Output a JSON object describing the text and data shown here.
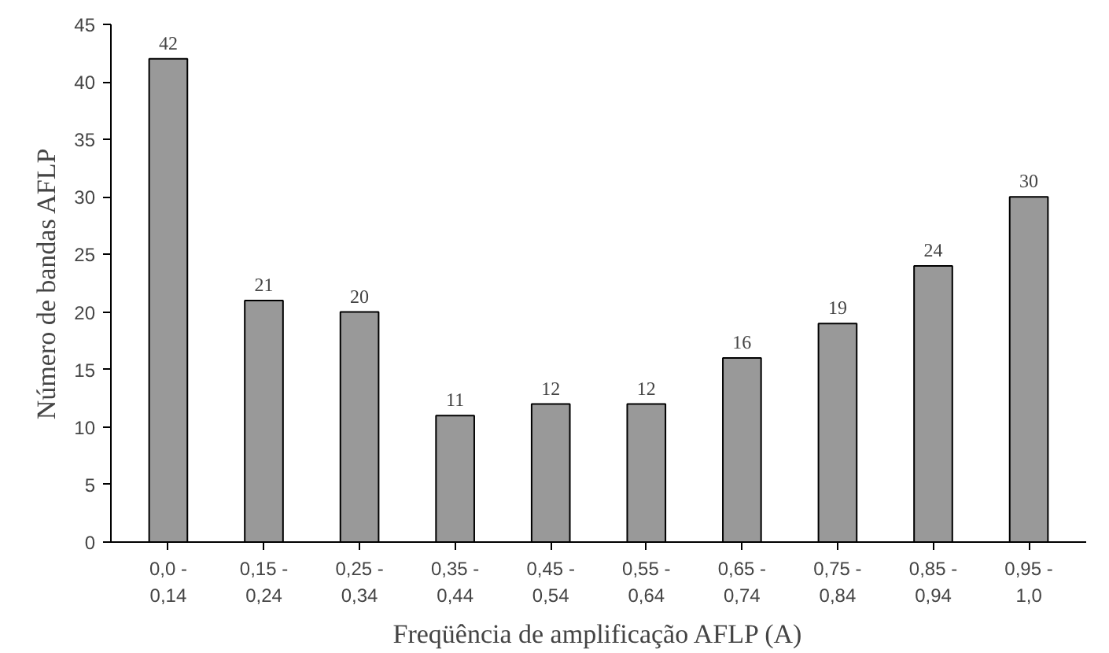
{
  "chart_data": {
    "type": "bar",
    "xlabel": "Freqüência de amplificação AFLP (A)",
    "ylabel": "Número de bandas AFLP",
    "categories": [
      "0,0 -\n0,14",
      "0,15 -\n0,24",
      "0,25 -\n0,34",
      "0,35 -\n0,44",
      "0,45 -\n0,54",
      "0,55 -\n0,64",
      "0,65 -\n0,74",
      "0,75 -\n0,84",
      "0,85 -\n0,94",
      "0,95 -\n1,0"
    ],
    "values": [
      42,
      21,
      20,
      11,
      12,
      12,
      16,
      19,
      24,
      30
    ],
    "color": "#999999",
    "ylim": [
      0,
      45
    ],
    "yticks": [
      0,
      5,
      10,
      15,
      20,
      25,
      30,
      35,
      40,
      45
    ],
    "grid": false,
    "data_labels": true
  }
}
